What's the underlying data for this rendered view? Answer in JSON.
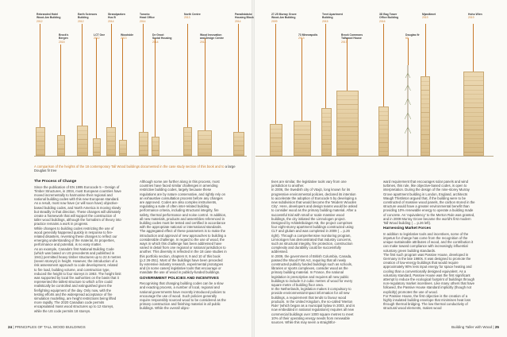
{
  "chart": {
    "buildings": [
      {
        "name": "Rebranded Hotel",
        "sub": "Wood-Am Building",
        "year": "2012"
      },
      {
        "name": "Brock's",
        "sub": "Bergen",
        "year": "2015"
      },
      {
        "name": "Earth Sciences",
        "sub": "Building",
        "year": "2012"
      },
      {
        "name": "LCT One",
        "sub": "",
        "year": "2012"
      },
      {
        "name": "Strandparken",
        "sub": "Hus B",
        "year": "2014"
      },
      {
        "name": "Woodside",
        "sub": "",
        "year": "2013"
      },
      {
        "name": "Toronto",
        "sub": "Head Office",
        "year": "2014"
      },
      {
        "name": "De Groot",
        "sub": "Social Housing",
        "year": "2014"
      },
      {
        "name": "North Centre",
        "sub": "",
        "year": "2013"
      },
      {
        "name": "Wood Innovation",
        "sub": "and Design Centre",
        "year": "2014"
      },
      {
        "name": "Paradisbäcke",
        "sub": "Housing Block",
        "year": "2014"
      },
      {
        "name": "27-25 Murray Grove",
        "sub": "Wood-Am Building",
        "year": "2009"
      },
      {
        "name": "73 Minneapolis",
        "sub": "",
        "year": "2013"
      },
      {
        "name": "Treet Apartment",
        "sub": "Building",
        "year": "2015"
      },
      {
        "name": "Brock Commons",
        "sub": "Tallwood House",
        "year": "2017"
      },
      {
        "name": "3D Bag Tower",
        "sub": "Office Building",
        "year": "2016"
      },
      {
        "name": "Douglas fir",
        "sub": "",
        "year": "60"
      },
      {
        "name": "Mjøstårnet",
        "sub": "",
        "year": "2019"
      },
      {
        "name": "Hoho Wien",
        "sub": "",
        "year": "2019"
      }
    ],
    "caption_accent": "A comparison of the heights of the 18 contemporary Tall Wood buildings documented in the case study section of this book and to",
    "caption_rest": "a large Douglas fir tree"
  },
  "columns": {
    "c1": {
      "heading": "The Process of Change",
      "p1": "Since the publication of EN 1995 Eurocode 5 – Design of Timber Structures, in 2004, most European countries have moved incrementally to harmonise their regional and national building codes with this new European standard. As a result, most now have (or will soon have) objective-based building codes, and North America is moving slowly but steadily in that direction. These changes will ultimately create a framework that will support the construction of taller wood buildings, although the formalism of theory into practice remains a work in progress.",
      "p2": "While changes to building codes restricting the use of wood generally happened quickly in response to fire-related disasters, reversing these changes to reflect our emerging understanding of the material, its properties, performance and potential, is no easy matter.",
      "p3": "As an example, Canada's first National Building Code (which was based on US precedents and published in 1941) permitted heavy timber structures up to 22.5 metres (seven storeys) in height. However, the introduction of a risk assessment approach to code development, related to fire load, building volume, and construction type, reduced the height to four storeys in 1953. The height limit was supported by local fire authorities on the basis that it represented the tallest structure to which a fire could realistically be controlled and extinguished given the firefighting equipment of the day. Only now, with the testing efforts and the widespread acceptance of fire simulation modelling, are height restrictions being lifted more rapidly. The 2020 Canadian code permits encapsulated mass wood structures up to 12 storeys, while the US code permits 18 storeys."
    },
    "c2": {
      "p1": "Although some are further along in this process, most countries have faced similar challenges in amending restrictive building codes, largely because these regulations are by nature conservative, and rightly rely on an exhaustive consultation process before any changes are approved. Codes are also complex instruments, regulating a suite of often inter-related building performance criteria, including structural integrity, fire safety, thermal performance and noise control. In addition, all new materials, products and assemblies referenced in building codes must be tested and certified in accordance with the appropriate national or international standards.",
      "p2": "The aggregated effect of these parameters is to make the introduction and approval of new approaches to building a considerable challenge. In regard to the use of wood, the ways in which this challenge has been addressed have varied in detail from one regional or national jurisdiction to another. This diversity is reflected in the 18 case studies in this portfolio section, chapters 8, 9 and 10 of this book (p.2 26-251). Most of the buildings have been preceded by extensive industry research, experimental prototypes and (in some cases) legislative tools that encourage or mandate the use of wood in publicly-funded buildings.",
      "heading": "GOVERNMENT POLICIES AND INCENTIVES",
      "p3": "Recognising that changing building codes can be a slow and exacting process, a number of local, regional and national governments have recently introduced policies to encourage the use of wood. Such policies generally require responsibly sourced wood to be considered as the primary construction and finishing material in all public buildings. While the overall objec-"
    },
    "c3": {
      "p1": "tives are similar, the legislative tools vary from one jurisdiction to another.",
      "p2": "In 2006, the Swedish city of Växjö, long known for its progressive environmental policies, declared its intention to accelerate the adoption of Eurocode 5 by developing a new subdivision that would become the 'Modern Wooden City'. Here, developers and design teams would be asked to consider wood as the primary building material. After a successful trial with small or scale massive wood buildings, the city initiated the Limnologen project. Designed by Arkitektbolaget AB, the project comprises four eight-storey apartment buildings constructed using CLT and glulam and was completed in 2009 (→ p.26 right). Through a comprehensive monitoring program, Limnologen has demonstrated that industry concerns, such as structural integrity, fire protection, construction complexity and durability could be successfully addressed.",
      "p3": "In 2009, the government of British Columbia, Canada, passed the Wood First Act, requiring that all newly constructed publicly funded buildings such as schools, libraries or sports complexes, consider wood as the primary building material. In France, the national legislation is prescriptive and requires all new public buildings to include 0.2 cubic metres of wood for every square metre of building floor area.",
      "p4": "In the Netherlands, legislation makes it compulsory to provide environmental-impact information for all new buildings, a requirement that tends to favour wood products. In the United Kingdom, the so-called 'Merton Rule' (which began as a municipal bylaw in 2003, and is now embedded in national regulations) requires all new commercial buildings over 1000 square metres to meet 10% of their operating energy needs from renewable sources. While this may seem a straightfor-"
    },
    "c4": {
      "p1": "ward requirement that encourages solar panels and wind turbines, this rule, like objective-based codes, is open to interpretation. During the design of the nine-storey Murray Grove apartment building in London, England, architects Waugh Thistleton argued that, if the building were to be constructed of massive wood panels, the carbon stored in the structure would have a greater environmental benefit than providing 10% renewable energy to operate a building made of concrete. An 'equivalency' to the Merton Rule was granted, and in 2009 Murray Grove became the world's first modern Tall Wood building (→ p.26 left).",
      "heading": "Harnessing Market Forces",
      "p2": "In addition to legislative tools and incentives, some of the impetus for change has come from the recognition of the unique sustainable attributes of wood, and the contribution it can make toward compliance with increasingly influential voluntary green building standards.",
      "p3": "The first such program was Passive House, developed in Germany in the late 1980s. It was designed to promote the creation of low-energy buildings that would require approximately 90% less input energy for space heating and cooling than a conventionally designed equivalent. As a voluntary standard, Passive House was the first significant attempt to reduce the ecological footprint of buildings through non-regulatory market incentives. Like many others that have followed, the Passive House standard implicitly (though not explicitly) promotes the use of wood.",
      "p4": "For Passive House, the first objective is the creation of a highly insulated building envelope that minimises heat loss through thermal bridging. The low thermal conductivity of structural wood elements, makes wood"
    }
  },
  "footer": {
    "left_page": "24",
    "left_title": "PRINCIPLES OF TALL WOOD BUILDINGS",
    "right_title": "Building Taller with Wood",
    "right_page": "25"
  }
}
